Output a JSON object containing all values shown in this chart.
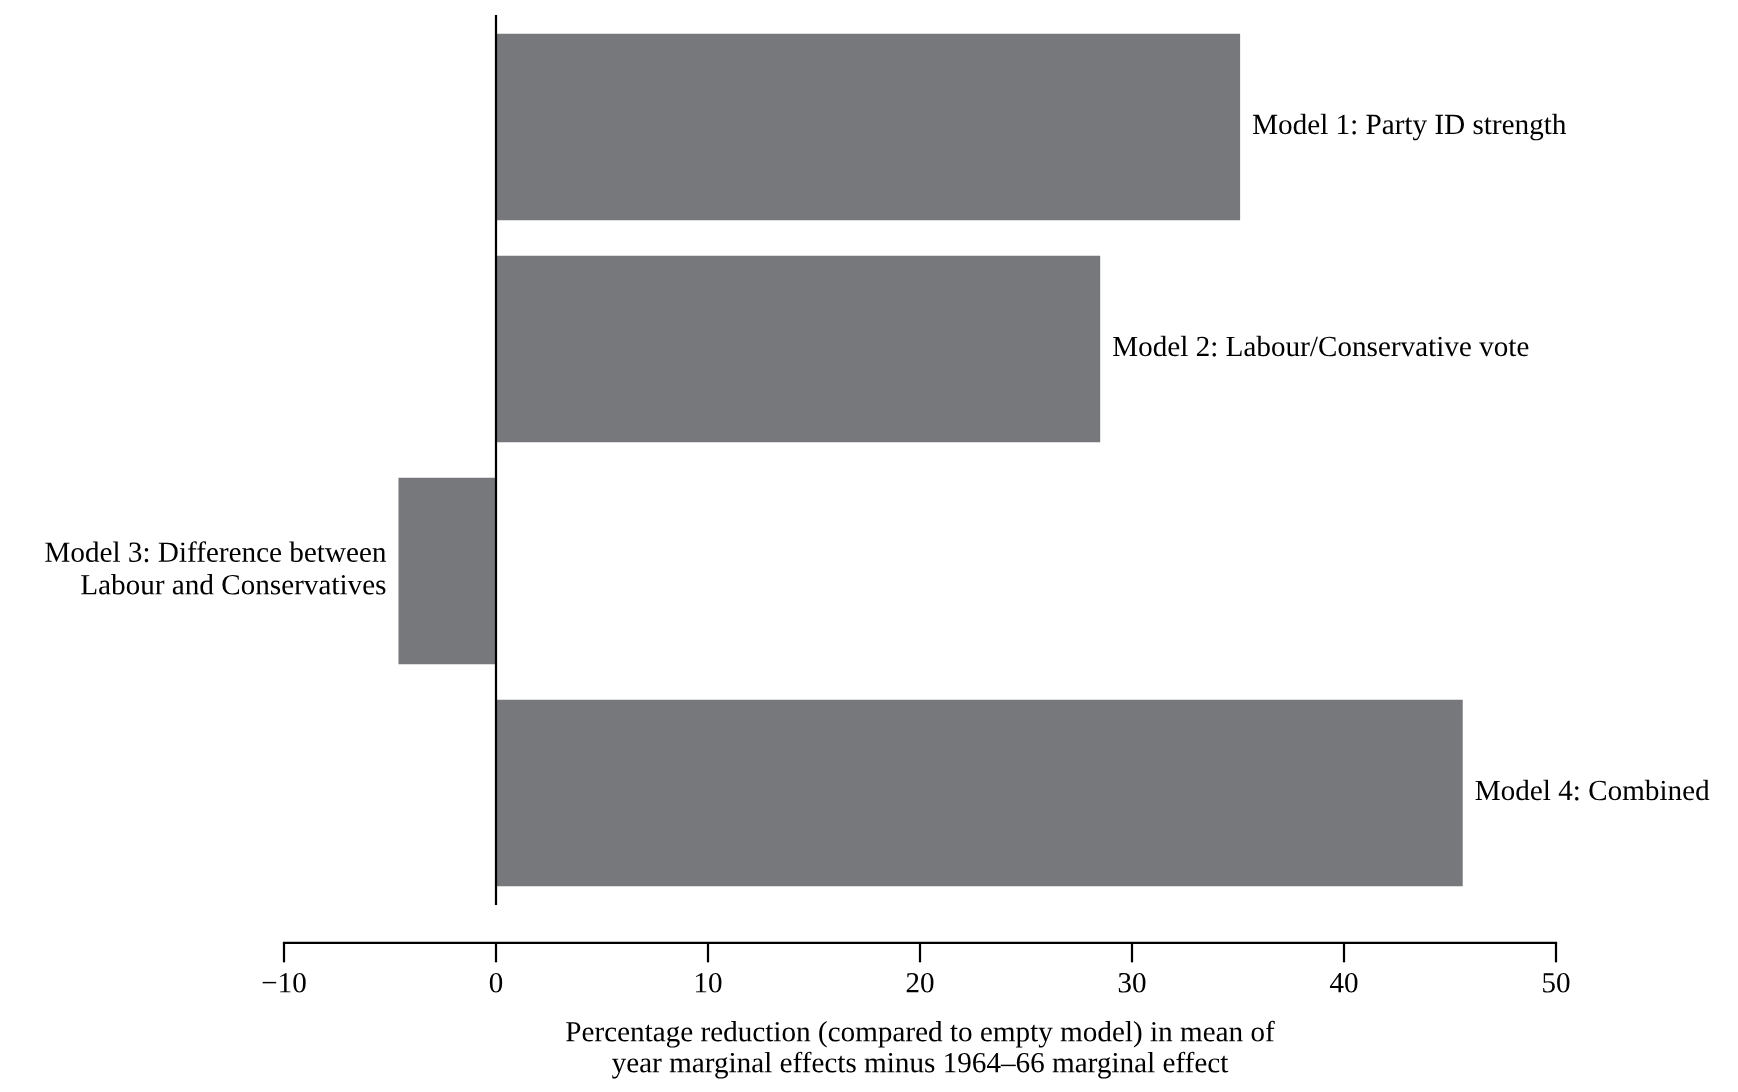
{
  "chart_data": {
    "type": "bar",
    "orientation": "horizontal",
    "categories": [
      "Model 1: Party ID strength",
      "Model 2: Labour/Conservative vote",
      "Model 3: Difference between\nLabour and Conservatives",
      "Model 4: Combined"
    ],
    "values": [
      35.1,
      28.5,
      -4.6,
      45.6
    ],
    "color": "#77787b",
    "xlim": [
      -10,
      50
    ],
    "xticks": [
      {
        "value": -10,
        "label": "−10"
      },
      0,
      10,
      20,
      30,
      40,
      50
    ],
    "xlabel": "Percentage reduction (compared to empty model) in mean of\nyear marginal effects minus 1964–66 marginal effect",
    "legend": false
  }
}
